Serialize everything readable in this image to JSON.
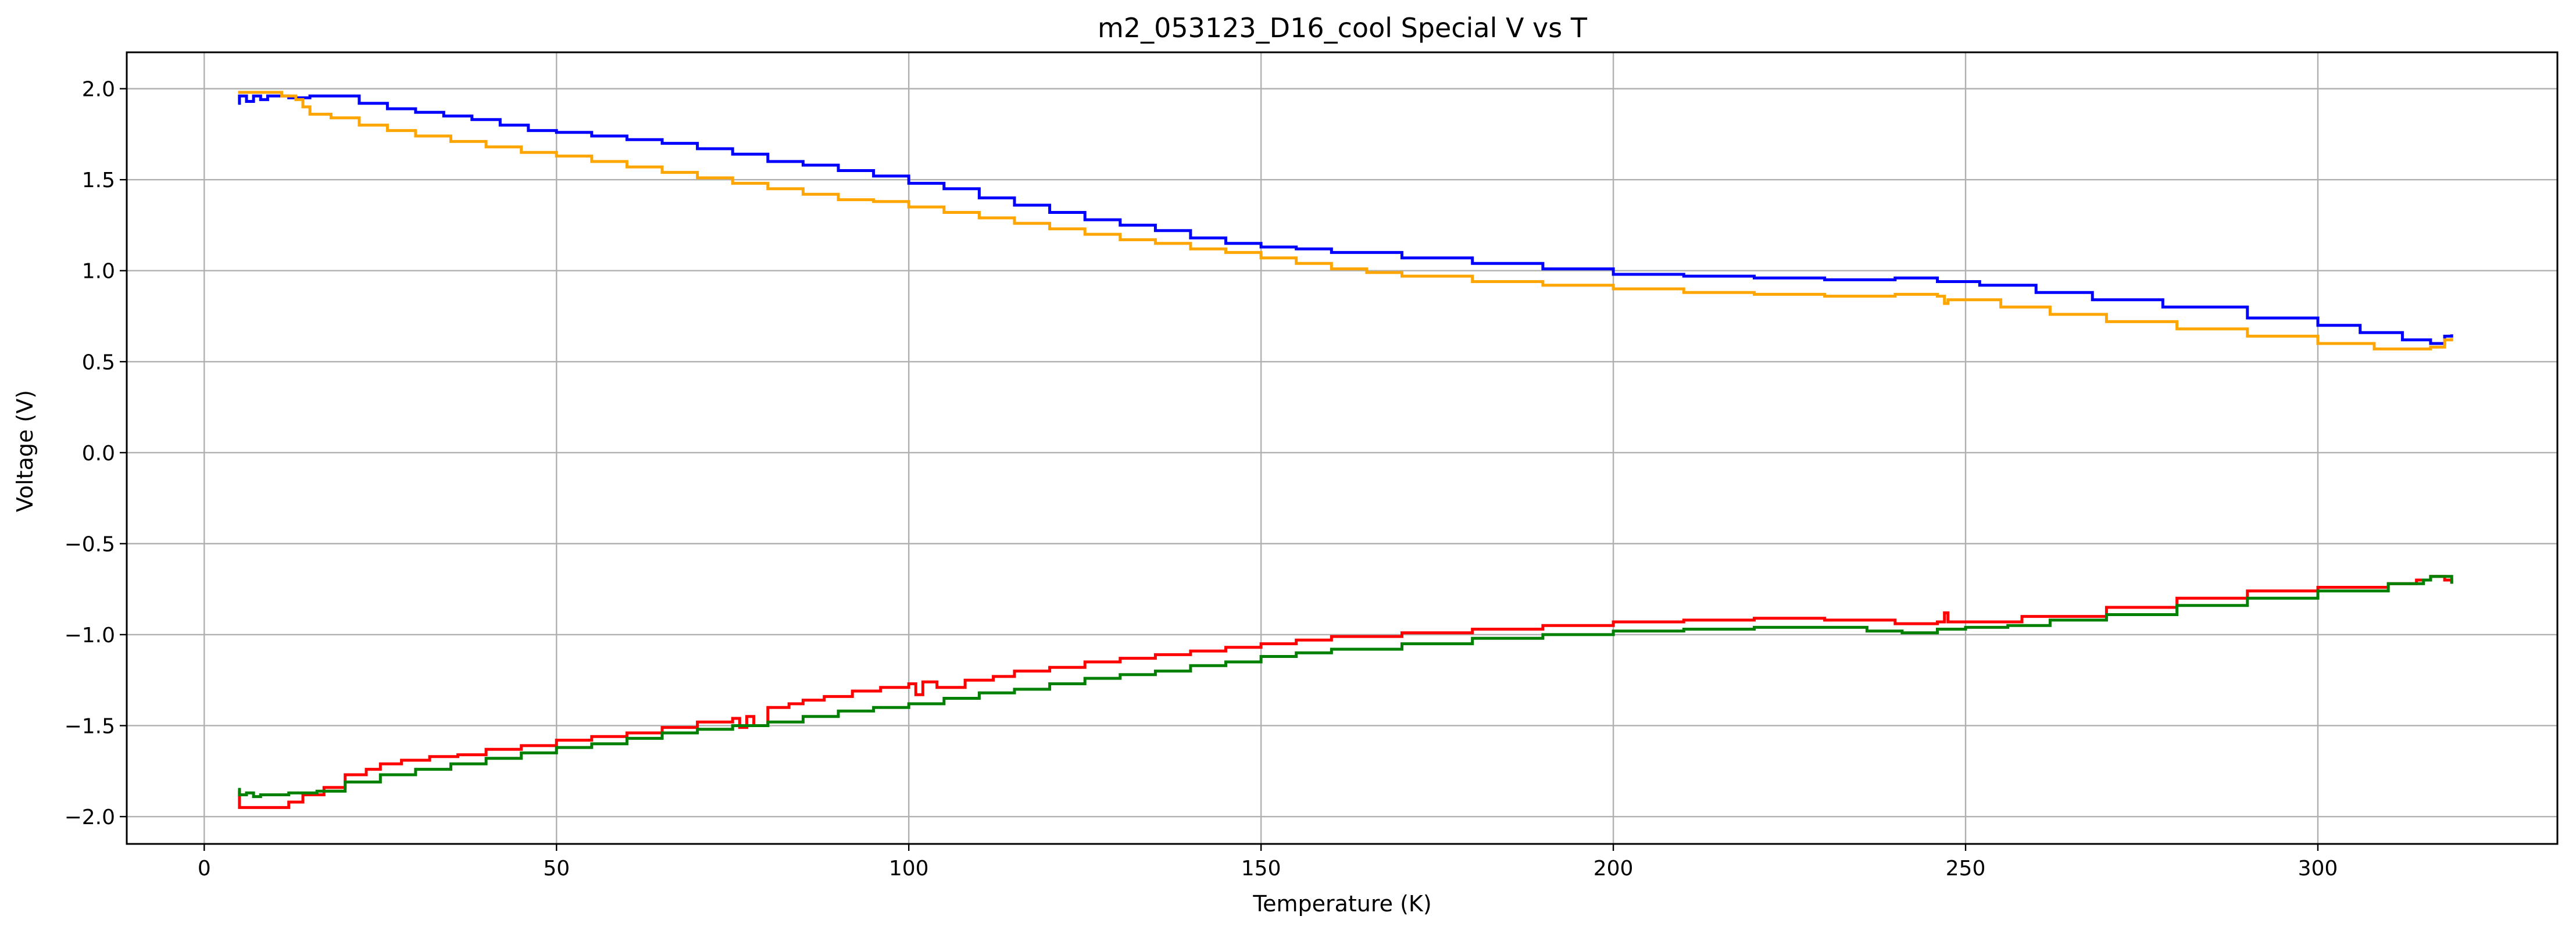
{
  "chart_data": {
    "type": "line",
    "title": "m2_053123_D16_cool Special V vs T",
    "xlabel": "Temperature (K)",
    "ylabel": "Voltage (V)",
    "xlim": [
      -11,
      334
    ],
    "ylim": [
      -2.15,
      2.2
    ],
    "x_ticks": [
      0,
      50,
      100,
      150,
      200,
      250,
      300
    ],
    "x_tick_labels": [
      "0",
      "50",
      "100",
      "150",
      "200",
      "250",
      "300"
    ],
    "y_ticks": [
      2.0,
      1.5,
      1.0,
      0.5,
      0.0,
      -0.5,
      -1.0,
      -1.5,
      -2.0
    ],
    "y_tick_labels": [
      "2.0",
      "1.5",
      "1.0",
      "0.5",
      "0.0",
      "−0.5",
      "−1.0",
      "−1.5",
      "−2.0"
    ],
    "grid": true,
    "legend": "none",
    "series": [
      {
        "color": "#0000ff",
        "step": true,
        "points": [
          [
            4.8,
            1.92
          ],
          [
            5,
            1.96
          ],
          [
            6,
            1.93
          ],
          [
            7,
            1.96
          ],
          [
            8,
            1.94
          ],
          [
            9,
            1.96
          ],
          [
            12,
            1.95
          ],
          [
            15,
            1.96
          ],
          [
            19,
            1.96
          ],
          [
            22,
            1.92
          ],
          [
            26,
            1.89
          ],
          [
            30,
            1.87
          ],
          [
            34,
            1.85
          ],
          [
            38,
            1.83
          ],
          [
            42,
            1.8
          ],
          [
            46,
            1.77
          ],
          [
            50,
            1.76
          ],
          [
            55,
            1.74
          ],
          [
            60,
            1.72
          ],
          [
            65,
            1.7
          ],
          [
            70,
            1.67
          ],
          [
            75,
            1.64
          ],
          [
            80,
            1.6
          ],
          [
            85,
            1.58
          ],
          [
            90,
            1.55
          ],
          [
            95,
            1.52
          ],
          [
            100,
            1.48
          ],
          [
            105,
            1.45
          ],
          [
            110,
            1.4
          ],
          [
            115,
            1.36
          ],
          [
            120,
            1.32
          ],
          [
            125,
            1.28
          ],
          [
            130,
            1.25
          ],
          [
            135,
            1.22
          ],
          [
            140,
            1.18
          ],
          [
            145,
            1.15
          ],
          [
            150,
            1.13
          ],
          [
            155,
            1.12
          ],
          [
            160,
            1.1
          ],
          [
            170,
            1.07
          ],
          [
            180,
            1.04
          ],
          [
            190,
            1.01
          ],
          [
            200,
            0.98
          ],
          [
            210,
            0.97
          ],
          [
            220,
            0.96
          ],
          [
            230,
            0.95
          ],
          [
            240,
            0.96
          ],
          [
            246,
            0.94
          ],
          [
            252,
            0.92
          ],
          [
            260,
            0.88
          ],
          [
            268,
            0.84
          ],
          [
            278,
            0.8
          ],
          [
            290,
            0.74
          ],
          [
            300,
            0.7
          ],
          [
            306,
            0.66
          ],
          [
            312,
            0.62
          ],
          [
            316,
            0.6
          ],
          [
            318,
            0.64
          ],
          [
            319,
            0.65
          ]
        ]
      },
      {
        "color": "#ffa500",
        "step": true,
        "points": [
          [
            4.8,
            1.98
          ],
          [
            6,
            1.98
          ],
          [
            9,
            1.98
          ],
          [
            11,
            1.96
          ],
          [
            13,
            1.94
          ],
          [
            14,
            1.9
          ],
          [
            15,
            1.86
          ],
          [
            18,
            1.84
          ],
          [
            22,
            1.8
          ],
          [
            26,
            1.77
          ],
          [
            30,
            1.74
          ],
          [
            35,
            1.71
          ],
          [
            40,
            1.68
          ],
          [
            45,
            1.65
          ],
          [
            50,
            1.63
          ],
          [
            55,
            1.6
          ],
          [
            60,
            1.57
          ],
          [
            65,
            1.54
          ],
          [
            70,
            1.51
          ],
          [
            75,
            1.48
          ],
          [
            80,
            1.45
          ],
          [
            85,
            1.42
          ],
          [
            90,
            1.39
          ],
          [
            95,
            1.38
          ],
          [
            100,
            1.35
          ],
          [
            105,
            1.32
          ],
          [
            110,
            1.29
          ],
          [
            115,
            1.26
          ],
          [
            120,
            1.23
          ],
          [
            125,
            1.2
          ],
          [
            130,
            1.17
          ],
          [
            135,
            1.15
          ],
          [
            140,
            1.12
          ],
          [
            145,
            1.1
          ],
          [
            150,
            1.07
          ],
          [
            155,
            1.04
          ],
          [
            160,
            1.01
          ],
          [
            165,
            0.99
          ],
          [
            170,
            0.97
          ],
          [
            180,
            0.94
          ],
          [
            190,
            0.92
          ],
          [
            200,
            0.9
          ],
          [
            210,
            0.88
          ],
          [
            220,
            0.87
          ],
          [
            230,
            0.86
          ],
          [
            240,
            0.87
          ],
          [
            246,
            0.86
          ],
          [
            247,
            0.82
          ],
          [
            247.5,
            0.84
          ],
          [
            255,
            0.8
          ],
          [
            262,
            0.76
          ],
          [
            270,
            0.72
          ],
          [
            280,
            0.68
          ],
          [
            290,
            0.64
          ],
          [
            300,
            0.6
          ],
          [
            308,
            0.57
          ],
          [
            314,
            0.57
          ],
          [
            316,
            0.58
          ],
          [
            318,
            0.62
          ],
          [
            319,
            0.63
          ]
        ]
      },
      {
        "color": "#ff0000",
        "step": true,
        "points": [
          [
            4.8,
            -1.86
          ],
          [
            5,
            -1.95
          ],
          [
            10,
            -1.95
          ],
          [
            12,
            -1.92
          ],
          [
            14,
            -1.88
          ],
          [
            17,
            -1.84
          ],
          [
            20,
            -1.77
          ],
          [
            23,
            -1.74
          ],
          [
            25,
            -1.71
          ],
          [
            28,
            -1.69
          ],
          [
            32,
            -1.67
          ],
          [
            36,
            -1.66
          ],
          [
            40,
            -1.63
          ],
          [
            45,
            -1.61
          ],
          [
            50,
            -1.58
          ],
          [
            55,
            -1.56
          ],
          [
            60,
            -1.54
          ],
          [
            65,
            -1.51
          ],
          [
            70,
            -1.48
          ],
          [
            75,
            -1.46
          ],
          [
            76,
            -1.51
          ],
          [
            77,
            -1.45
          ],
          [
            78,
            -1.5
          ],
          [
            80,
            -1.4
          ],
          [
            83,
            -1.38
          ],
          [
            85,
            -1.36
          ],
          [
            88,
            -1.34
          ],
          [
            92,
            -1.31
          ],
          [
            96,
            -1.29
          ],
          [
            100,
            -1.27
          ],
          [
            101,
            -1.33
          ],
          [
            102,
            -1.26
          ],
          [
            104,
            -1.29
          ],
          [
            108,
            -1.25
          ],
          [
            112,
            -1.23
          ],
          [
            115,
            -1.2
          ],
          [
            120,
            -1.18
          ],
          [
            125,
            -1.15
          ],
          [
            130,
            -1.13
          ],
          [
            135,
            -1.11
          ],
          [
            140,
            -1.09
          ],
          [
            145,
            -1.07
          ],
          [
            150,
            -1.05
          ],
          [
            155,
            -1.03
          ],
          [
            160,
            -1.01
          ],
          [
            170,
            -0.99
          ],
          [
            180,
            -0.97
          ],
          [
            190,
            -0.95
          ],
          [
            200,
            -0.93
          ],
          [
            210,
            -0.92
          ],
          [
            220,
            -0.91
          ],
          [
            230,
            -0.92
          ],
          [
            240,
            -0.94
          ],
          [
            246,
            -0.93
          ],
          [
            247,
            -0.88
          ],
          [
            247.5,
            -0.93
          ],
          [
            258,
            -0.9
          ],
          [
            270,
            -0.85
          ],
          [
            280,
            -0.8
          ],
          [
            290,
            -0.76
          ],
          [
            300,
            -0.74
          ],
          [
            310,
            -0.72
          ],
          [
            314,
            -0.7
          ],
          [
            316,
            -0.68
          ],
          [
            318,
            -0.7
          ],
          [
            319,
            -0.72
          ]
        ]
      },
      {
        "color": "#008000",
        "step": true,
        "points": [
          [
            4.8,
            -1.85
          ],
          [
            5,
            -1.88
          ],
          [
            6,
            -1.87
          ],
          [
            7,
            -1.89
          ],
          [
            8,
            -1.88
          ],
          [
            12,
            -1.87
          ],
          [
            16,
            -1.86
          ],
          [
            20,
            -1.81
          ],
          [
            25,
            -1.77
          ],
          [
            30,
            -1.74
          ],
          [
            35,
            -1.71
          ],
          [
            40,
            -1.68
          ],
          [
            45,
            -1.65
          ],
          [
            50,
            -1.62
          ],
          [
            55,
            -1.6
          ],
          [
            60,
            -1.57
          ],
          [
            65,
            -1.54
          ],
          [
            70,
            -1.52
          ],
          [
            75,
            -1.5
          ],
          [
            80,
            -1.48
          ],
          [
            85,
            -1.45
          ],
          [
            90,
            -1.42
          ],
          [
            95,
            -1.4
          ],
          [
            100,
            -1.38
          ],
          [
            105,
            -1.35
          ],
          [
            110,
            -1.32
          ],
          [
            115,
            -1.3
          ],
          [
            120,
            -1.27
          ],
          [
            125,
            -1.24
          ],
          [
            130,
            -1.22
          ],
          [
            135,
            -1.2
          ],
          [
            140,
            -1.17
          ],
          [
            145,
            -1.15
          ],
          [
            150,
            -1.12
          ],
          [
            155,
            -1.1
          ],
          [
            160,
            -1.08
          ],
          [
            170,
            -1.05
          ],
          [
            180,
            -1.02
          ],
          [
            190,
            -1.0
          ],
          [
            200,
            -0.98
          ],
          [
            210,
            -0.97
          ],
          [
            220,
            -0.96
          ],
          [
            230,
            -0.96
          ],
          [
            236,
            -0.98
          ],
          [
            241,
            -0.99
          ],
          [
            246,
            -0.97
          ],
          [
            250,
            -0.96
          ],
          [
            256,
            -0.95
          ],
          [
            262,
            -0.92
          ],
          [
            270,
            -0.89
          ],
          [
            280,
            -0.84
          ],
          [
            290,
            -0.8
          ],
          [
            300,
            -0.76
          ],
          [
            310,
            -0.72
          ],
          [
            315,
            -0.7
          ],
          [
            316,
            -0.68
          ],
          [
            318,
            -0.68
          ],
          [
            319,
            -0.72
          ]
        ]
      }
    ]
  }
}
